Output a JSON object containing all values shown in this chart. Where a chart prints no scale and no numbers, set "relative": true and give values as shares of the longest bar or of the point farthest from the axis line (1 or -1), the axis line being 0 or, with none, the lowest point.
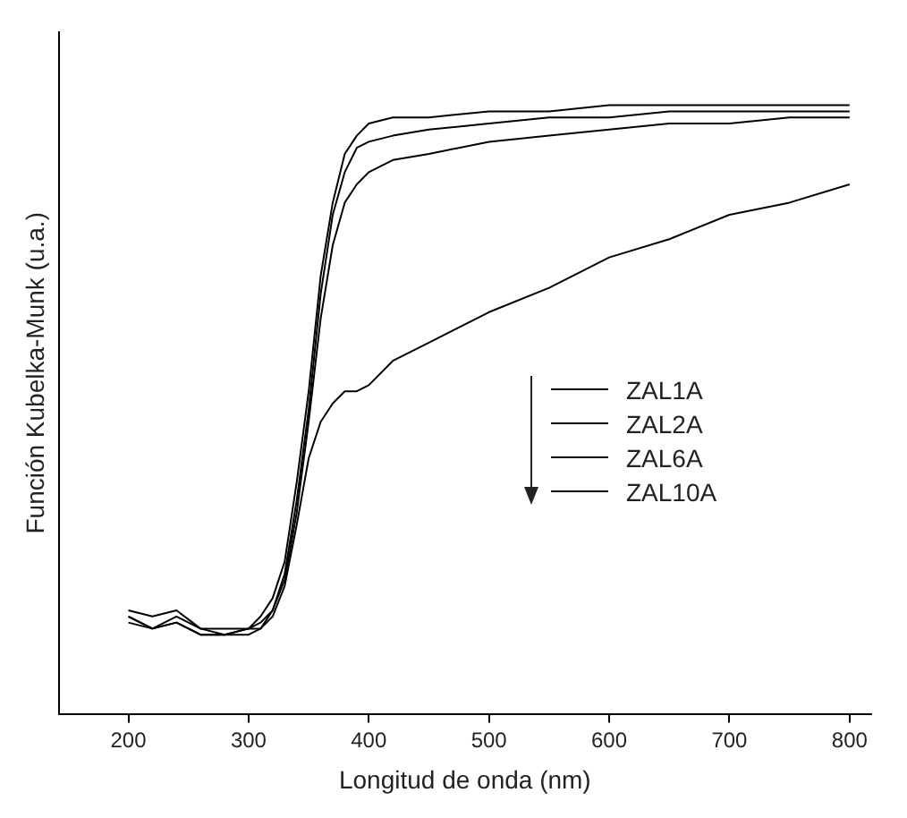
{
  "chart_data": {
    "type": "line",
    "xlabel": "Longitud de onda (nm)",
    "ylabel": "Función Kubelka-Munk (u.a.)",
    "relative": true,
    "xlim": [
      142,
      818
    ],
    "xticks": [
      200,
      300,
      400,
      500,
      600,
      700,
      800
    ],
    "legend": "right",
    "marker": "none",
    "line_style": "solid",
    "grid": false,
    "x": [
      200,
      220,
      240,
      260,
      280,
      300,
      310,
      320,
      330,
      340,
      350,
      360,
      370,
      380,
      390,
      400,
      420,
      450,
      500,
      550,
      600,
      650,
      700,
      750,
      800
    ],
    "series": [
      {
        "name": "ZAL1A",
        "color": "#000000",
        "values": [
          0.17,
          0.16,
          0.17,
          0.14,
          0.14,
          0.14,
          0.16,
          0.19,
          0.25,
          0.38,
          0.53,
          0.72,
          0.84,
          0.92,
          0.95,
          0.97,
          0.98,
          0.98,
          0.99,
          0.99,
          1.0,
          1.0,
          1.0,
          1.0,
          1.0
        ]
      },
      {
        "name": "ZAL2A",
        "color": "#000000",
        "values": [
          0.16,
          0.14,
          0.16,
          0.14,
          0.13,
          0.14,
          0.15,
          0.17,
          0.23,
          0.35,
          0.5,
          0.69,
          0.82,
          0.89,
          0.93,
          0.94,
          0.95,
          0.96,
          0.97,
          0.98,
          0.98,
          0.99,
          0.99,
          0.99,
          0.99
        ]
      },
      {
        "name": "ZAL6A",
        "color": "#000000",
        "values": [
          0.15,
          0.14,
          0.15,
          0.13,
          0.13,
          0.13,
          0.14,
          0.17,
          0.22,
          0.33,
          0.48,
          0.65,
          0.77,
          0.84,
          0.87,
          0.89,
          0.91,
          0.92,
          0.94,
          0.95,
          0.96,
          0.97,
          0.97,
          0.98,
          0.98
        ]
      },
      {
        "name": "ZAL10A",
        "color": "#000000",
        "values": [
          0.16,
          0.14,
          0.15,
          0.13,
          0.13,
          0.14,
          0.14,
          0.16,
          0.21,
          0.31,
          0.42,
          0.48,
          0.51,
          0.53,
          0.53,
          0.54,
          0.58,
          0.61,
          0.66,
          0.7,
          0.75,
          0.78,
          0.82,
          0.84,
          0.87
        ]
      }
    ]
  }
}
